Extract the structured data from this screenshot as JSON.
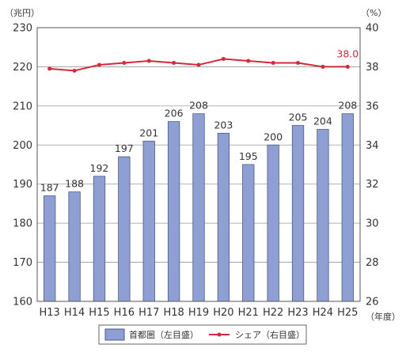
{
  "chart_data": {
    "type": "bar+line",
    "categories": [
      "H13",
      "H14",
      "H15",
      "H16",
      "H17",
      "H18",
      "H19",
      "H20",
      "H21",
      "H22",
      "H23",
      "H24",
      "H25"
    ],
    "bar_series": {
      "name": "首都圏（左目盛）",
      "values": [
        187,
        188,
        192,
        197,
        201,
        206,
        208,
        203,
        195,
        200,
        205,
        204,
        208
      ],
      "color": "#8e9fd3"
    },
    "line_series": {
      "name": "シェア（右目盛）",
      "values": [
        37.9,
        37.8,
        38.1,
        38.2,
        38.3,
        38.2,
        38.1,
        38.4,
        38.3,
        38.2,
        38.2,
        38.0,
        38.0
      ],
      "color": "#d7283b",
      "last_label": "38.0"
    },
    "y_left": {
      "unit": "（兆円）",
      "range": [
        160,
        230
      ],
      "ticks": [
        "160",
        "170",
        "180",
        "190",
        "200",
        "210",
        "220",
        "230"
      ]
    },
    "y_right": {
      "unit": "（%）",
      "range": [
        26,
        40
      ],
      "ticks": [
        "26",
        "28",
        "30",
        "32",
        "34",
        "36",
        "38",
        "40"
      ]
    },
    "x_unit": "（年度）",
    "grid": true,
    "legend_position": "bottom"
  }
}
